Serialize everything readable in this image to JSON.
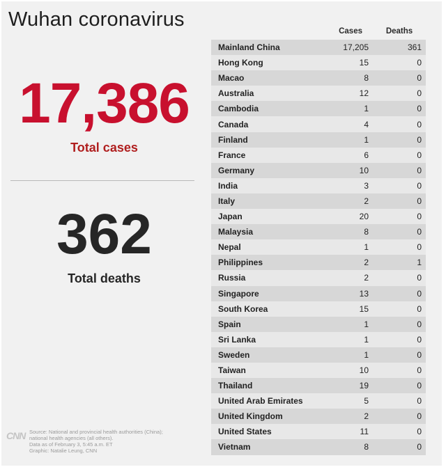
{
  "title": "Wuhan coronavirus",
  "totals": {
    "cases": "17,386",
    "cases_label": "Total cases",
    "deaths": "362",
    "deaths_label": "Total deaths"
  },
  "logo": "CNN",
  "source_lines": [
    "Source: National and provincial health authorities (China);",
    "national health agencies (all others).",
    "Data as of February 3, 5:45 a.m. ET",
    "Graphic: Natalie Leung, CNN"
  ],
  "colors": {
    "accent_red": "#c8102e",
    "dark": "#262626",
    "row_dark": "#d7d7d7",
    "row_light": "#e8e8e8"
  },
  "table": {
    "headers": [
      "Cases",
      "Deaths"
    ],
    "rows": [
      {
        "country": "Mainland China",
        "cases": "17,205",
        "deaths": "361"
      },
      {
        "country": "Hong Kong",
        "cases": "15",
        "deaths": "0"
      },
      {
        "country": "Macao",
        "cases": "8",
        "deaths": "0"
      },
      {
        "country": "Australia",
        "cases": "12",
        "deaths": "0"
      },
      {
        "country": "Cambodia",
        "cases": "1",
        "deaths": "0"
      },
      {
        "country": "Canada",
        "cases": "4",
        "deaths": "0"
      },
      {
        "country": "Finland",
        "cases": "1",
        "deaths": "0"
      },
      {
        "country": "France",
        "cases": "6",
        "deaths": "0"
      },
      {
        "country": "Germany",
        "cases": "10",
        "deaths": "0"
      },
      {
        "country": "India",
        "cases": "3",
        "deaths": "0"
      },
      {
        "country": "Italy",
        "cases": "2",
        "deaths": "0"
      },
      {
        "country": "Japan",
        "cases": "20",
        "deaths": "0"
      },
      {
        "country": "Malaysia",
        "cases": "8",
        "deaths": "0"
      },
      {
        "country": "Nepal",
        "cases": "1",
        "deaths": "0"
      },
      {
        "country": "Philippines",
        "cases": "2",
        "deaths": "1"
      },
      {
        "country": "Russia",
        "cases": "2",
        "deaths": "0"
      },
      {
        "country": "Singapore",
        "cases": "13",
        "deaths": "0"
      },
      {
        "country": "South Korea",
        "cases": "15",
        "deaths": "0"
      },
      {
        "country": "Spain",
        "cases": "1",
        "deaths": "0"
      },
      {
        "country": "Sri Lanka",
        "cases": "1",
        "deaths": "0"
      },
      {
        "country": "Sweden",
        "cases": "1",
        "deaths": "0"
      },
      {
        "country": "Taiwan",
        "cases": "10",
        "deaths": "0"
      },
      {
        "country": "Thailand",
        "cases": "19",
        "deaths": "0"
      },
      {
        "country": "United Arab Emirates",
        "cases": "5",
        "deaths": "0"
      },
      {
        "country": "United Kingdom",
        "cases": "2",
        "deaths": "0"
      },
      {
        "country": "United States",
        "cases": "11",
        "deaths": "0"
      },
      {
        "country": "Vietnam",
        "cases": "8",
        "deaths": "0"
      }
    ]
  }
}
